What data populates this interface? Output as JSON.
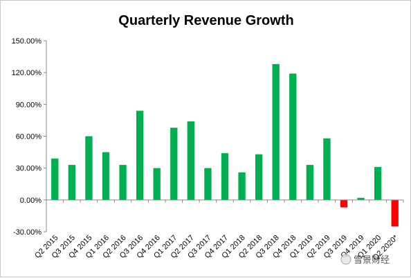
{
  "chart_data": {
    "type": "bar",
    "title": "Quarterly Revenue Growth",
    "xlabel": "",
    "ylabel": "",
    "ylim": [
      -30,
      150
    ],
    "yticks": [
      -30,
      0,
      30,
      60,
      90,
      120,
      150
    ],
    "ytick_labels": [
      "-30.00%",
      "0.00%",
      "30.00%",
      "60.00%",
      "90.00%",
      "120.00%",
      "150.00%"
    ],
    "grid": false,
    "legend": "none",
    "categories": [
      "Q2 2015",
      "Q3 2015",
      "Q4 2015",
      "Q1 2016",
      "Q2 2016",
      "Q3 2016",
      "Q4 2016",
      "Q1 2017",
      "Q2 2017",
      "Q3 2017",
      "Q4 2017",
      "Q1 2018",
      "Q2 2018",
      "Q3 2018",
      "Q4 2018",
      "Q1 2019",
      "Q2 2019",
      "Q3 2019",
      "Q4 2019",
      "Q1 2020",
      "Q2 2020*"
    ],
    "values": [
      39,
      33,
      60,
      45,
      33,
      84,
      30,
      68,
      74,
      30,
      44,
      26,
      43,
      128,
      119,
      33,
      58,
      -7,
      2,
      31,
      -25
    ],
    "colors": {
      "positive": "#00b050",
      "negative": "#ff0000"
    }
  },
  "watermark": {
    "text": "雪景财经"
  }
}
